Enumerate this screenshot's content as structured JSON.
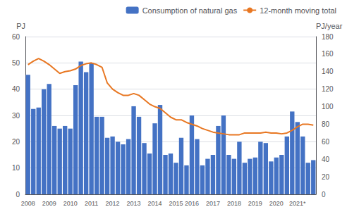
{
  "chart_data": {
    "type": "bar",
    "ylabel": "PJ",
    "y2label": "PJ/year",
    "categories": [
      "2008",
      null,
      null,
      null,
      "2009",
      null,
      null,
      null,
      "2010",
      null,
      null,
      null,
      "2011",
      null,
      null,
      null,
      "2012",
      null,
      null,
      null,
      "2013",
      null,
      null,
      null,
      "2014",
      null,
      null,
      null,
      "2015",
      null,
      null,
      "2016",
      null,
      null,
      null,
      "2017",
      null,
      null,
      null,
      "2018",
      null,
      null,
      null,
      "2019",
      null,
      null,
      null,
      "2020",
      null,
      null,
      null,
      "2021*",
      null,
      null,
      null
    ],
    "series": [
      {
        "name": "Consumption of natural gas",
        "type": "bar",
        "color": "#4472C4",
        "values": [
          45.5,
          32.5,
          33.0,
          40.0,
          42.0,
          26.0,
          25.0,
          26.0,
          25.0,
          41.5,
          50.5,
          46.5,
          50.0,
          29.5,
          29.5,
          21.5,
          22.0,
          20.0,
          19.0,
          21.0,
          33.5,
          29.5,
          19.5,
          15.5,
          27.0,
          34.0,
          15.0,
          15.5,
          12.0,
          21.5,
          11.0,
          30.0,
          21.0,
          11.0,
          13.5,
          15.0,
          26.0,
          30.0,
          15.0,
          13.5,
          20.0,
          12.0,
          13.5,
          14.0,
          20.0,
          19.5,
          12.5,
          14.0,
          15.0,
          22.0,
          31.5,
          27.5,
          22.0,
          12.0,
          13.0
        ]
      },
      {
        "name": "12-month moving total",
        "type": "line",
        "axis": "y2",
        "color": "#E87722",
        "values": [
          148,
          152,
          155,
          152,
          148,
          143,
          138,
          140,
          141,
          143,
          147,
          149,
          150,
          148,
          145,
          127,
          120,
          116,
          113,
          113,
          115,
          113,
          108,
          103,
          100,
          98,
          93,
          88,
          85,
          85,
          82,
          80,
          78,
          75,
          73,
          71,
          70,
          69,
          68,
          68,
          68,
          70,
          70,
          70,
          70,
          71,
          70,
          70,
          69,
          70,
          73,
          77,
          80,
          80,
          79
        ]
      }
    ],
    "ylim": [
      0,
      60
    ],
    "yticks": [
      0,
      10,
      20,
      30,
      40,
      50,
      60
    ],
    "y2lim": [
      0,
      180
    ],
    "y2ticks": [
      0,
      20,
      40,
      60,
      80,
      100,
      120,
      140,
      160,
      180
    ],
    "grid": true,
    "legend": "upper right"
  }
}
